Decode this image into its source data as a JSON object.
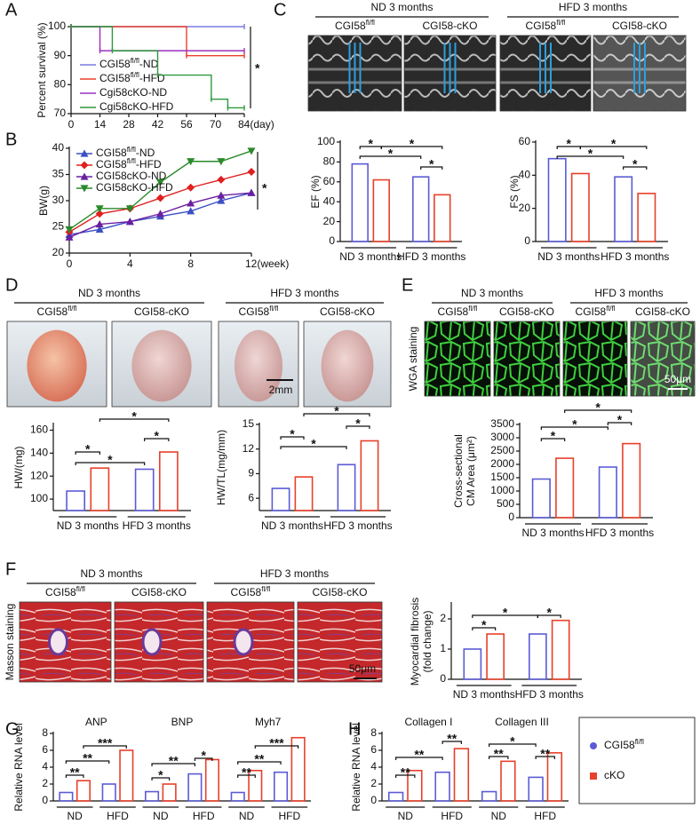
{
  "figure": {
    "panel_labels": [
      "A",
      "B",
      "C",
      "D",
      "E",
      "F",
      "G",
      "H"
    ],
    "echo": {
      "groups": [
        "ND 3 months",
        "HFD 3 months"
      ],
      "columns": [
        "CGI58fl/fl",
        "CGI58-cKO",
        "CGI58fl/fl",
        "CGI58-cKO"
      ]
    },
    "hearts": {
      "groups": [
        "ND 3 months",
        "HFD 3 months"
      ],
      "columns": [
        "CGI58fl/fl",
        "CGI58-cKO",
        "CGI58fl/fl",
        "CGI58-cKO"
      ],
      "scale": "2mm"
    },
    "wga": {
      "groups": [
        "ND 3 months",
        "HFD 3 months"
      ],
      "columns": [
        "CGI58fl/fl",
        "CGI58-cKO",
        "CGI58fl/fl",
        "CGI58-cKO"
      ],
      "stain": "WGA staining",
      "scale": "50μm"
    },
    "masson": {
      "groups": [
        "ND 3 months",
        "HFD 3 months"
      ],
      "columns": [
        "CGI58fl/fl",
        "CGI58-cKO",
        "CGI58fl/fl",
        "CGI58-cKO"
      ],
      "stain": "Masson staining",
      "scale": "50μm"
    },
    "legend": [
      {
        "name": "CGI58fl/fl",
        "color": "#5b5bd6"
      },
      {
        "name": "cKO",
        "color": "#e8402a"
      }
    ]
  },
  "chart_data": [
    {
      "type": "step",
      "ylabel": "Percent survival (%)",
      "xlim": [
        0,
        84
      ],
      "xticks": [
        0,
        14,
        28,
        42,
        56,
        70,
        {
          "value": 84,
          "label": "84(day)"
        }
      ],
      "ylim": [
        70,
        100
      ],
      "yticks": [
        70,
        80,
        90,
        100
      ],
      "annotation": "*",
      "series": [
        {
          "name": "CGI58fl/fl-ND",
          "color": "#7b7be0",
          "x": [
            0,
            84
          ],
          "values": [
            100,
            100
          ]
        },
        {
          "name": "CGI58fl/fl-HFD",
          "color": "#e8402a",
          "x": [
            0,
            56,
            84
          ],
          "values": [
            100,
            90,
            90
          ]
        },
        {
          "name": "Cgi58cKO-ND",
          "color": "#9b30c0",
          "x": [
            0,
            14,
            84
          ],
          "values": [
            100,
            91.7,
            91.7
          ]
        },
        {
          "name": "Cgi58cKO-HFD",
          "color": "#2e9a3e",
          "x": [
            0,
            20,
            42,
            68,
            76,
            84
          ],
          "values": [
            100,
            91.7,
            83.3,
            75,
            72,
            72
          ]
        }
      ]
    },
    {
      "type": "line",
      "ylabel": "BW(g)",
      "xlim": [
        0,
        12
      ],
      "xticks": [
        0,
        4,
        8,
        {
          "value": 12,
          "label": "12(week)"
        }
      ],
      "ylim": [
        20,
        40
      ],
      "yticks": [
        20,
        25,
        30,
        35,
        40
      ],
      "annotation": "*",
      "series": [
        {
          "name": "CGI58fl/fl-ND",
          "color": "#3b4fc4",
          "marker": "triangle",
          "x": [
            0,
            2,
            4,
            6,
            8,
            10,
            12
          ],
          "values": [
            23.5,
            24.5,
            26,
            27,
            28,
            30,
            31.5
          ]
        },
        {
          "name": "CGI58fl/fl-HFD",
          "color": "#e02020",
          "marker": "diamond",
          "x": [
            0,
            2,
            4,
            6,
            8,
            10,
            12
          ],
          "values": [
            24,
            27.5,
            28.5,
            30.5,
            32.5,
            34,
            35.5
          ]
        },
        {
          "name": "CGI58cKO-ND",
          "color": "#6a1fa0",
          "marker": "triangle",
          "x": [
            0,
            2,
            4,
            6,
            8,
            10,
            12
          ],
          "values": [
            23,
            25.5,
            26,
            27.5,
            29.5,
            31,
            31.5
          ]
        },
        {
          "name": "CGI58cKO-HFD",
          "color": "#2a8a2a",
          "marker": "triangle-down",
          "x": [
            0,
            2,
            4,
            6,
            8,
            10,
            12
          ],
          "values": [
            24.5,
            28.5,
            28.5,
            33.5,
            37.5,
            37.5,
            39.5
          ]
        }
      ]
    },
    {
      "type": "bar",
      "ylabel": "EF (%)",
      "ylim": [
        0,
        100
      ],
      "yticks": [
        0,
        20,
        40,
        60,
        80,
        100
      ],
      "categories": [
        "ND 3 months",
        "HFD 3 months"
      ],
      "series": [
        {
          "color": "#5b5bd6",
          "values": [
            78,
            65
          ]
        },
        {
          "color": "#e8402a",
          "values": [
            62,
            47
          ]
        }
      ],
      "brackets": [
        "*",
        "*",
        "*",
        "*"
      ]
    },
    {
      "type": "bar",
      "ylabel": "FS (%)",
      "ylim": [
        0,
        60
      ],
      "yticks": [
        0,
        20,
        40,
        60
      ],
      "categories": [
        "ND 3 months",
        "HFD 3 months"
      ],
      "series": [
        {
          "color": "#5b5bd6",
          "values": [
            50,
            39
          ]
        },
        {
          "color": "#e8402a",
          "values": [
            41,
            29
          ]
        }
      ],
      "brackets": [
        "*",
        "*",
        "*",
        "*"
      ]
    },
    {
      "type": "bar",
      "ylabel": "HW/(mg)",
      "ylim": [
        90,
        165
      ],
      "yticks": [
        100,
        120,
        140,
        160
      ],
      "categories": [
        "ND 3 months",
        "HFD 3 months"
      ],
      "series": [
        {
          "color": "#5b5bd6",
          "values": [
            107,
            126
          ]
        },
        {
          "color": "#e8402a",
          "values": [
            127,
            141
          ]
        }
      ],
      "brackets": [
        "*",
        "*",
        "*",
        "*"
      ]
    },
    {
      "type": "bar",
      "ylabel": "HW/TL(mg/mm)",
      "ylim": [
        4.5,
        15
      ],
      "yticks": [
        6,
        9,
        12,
        15
      ],
      "categories": [
        "ND 3 months",
        "HFD 3 months"
      ],
      "series": [
        {
          "color": "#5b5bd6",
          "values": [
            7.2,
            10.1
          ]
        },
        {
          "color": "#e8402a",
          "values": [
            8.6,
            13
          ]
        }
      ],
      "brackets": [
        "*",
        "*",
        "*",
        "*"
      ]
    },
    {
      "type": "bar",
      "ylabel": [
        "Cross-sectional",
        "CM Area (μm²)"
      ],
      "ylim": [
        0,
        3500
      ],
      "yticks": [
        0,
        500,
        1000,
        1500,
        2000,
        2500,
        3000,
        3500
      ],
      "categories": [
        "ND 3 months",
        "HFD 3 months"
      ],
      "series": [
        {
          "color": "#5b5bd6",
          "values": [
            1450,
            1900
          ]
        },
        {
          "color": "#e8402a",
          "values": [
            2230,
            2780
          ]
        }
      ],
      "brackets": [
        "*",
        "*",
        "*",
        "*"
      ]
    },
    {
      "type": "bar",
      "ylabel": [
        "Myocardial fibrosis",
        "(fold change)"
      ],
      "ylim": [
        0,
        2.5
      ],
      "yticks": [
        0,
        1,
        2
      ],
      "categories": [
        "ND 3 months",
        "HFD 3 months"
      ],
      "series": [
        {
          "color": "#5b5bd6",
          "values": [
            1.0,
            1.5
          ]
        },
        {
          "color": "#e8402a",
          "values": [
            1.5,
            1.95
          ]
        }
      ],
      "brackets": [
        "*",
        "*",
        "*"
      ]
    },
    {
      "type": "bar",
      "ylabel": "Relative RNA level",
      "ylim": [
        0,
        8
      ],
      "yticks": [
        0,
        2,
        4,
        6,
        8
      ],
      "group_titles": [
        "ANP",
        "BNP",
        "Myh7"
      ],
      "categories": [
        "ND",
        "HFD",
        "ND",
        "HFD",
        "ND",
        "HFD"
      ],
      "series": [
        {
          "color": "#5b5bd6",
          "values": [
            1.0,
            2.0,
            1.1,
            3.2,
            1.0,
            3.4
          ]
        },
        {
          "color": "#e8402a",
          "values": [
            2.4,
            6.0,
            2.0,
            4.9,
            3.6,
            7.5
          ]
        }
      ],
      "brackets": [
        "***",
        "**",
        "**",
        "*",
        "**",
        "*",
        "***",
        "**",
        "**"
      ]
    },
    {
      "type": "bar",
      "ylabel": "Relative RNA level",
      "ylim": [
        0,
        8
      ],
      "yticks": [
        0,
        2,
        4,
        6,
        8
      ],
      "group_titles": [
        "Collagen I",
        "Collagen III"
      ],
      "categories": [
        "ND",
        "HFD",
        "ND",
        "HFD"
      ],
      "series": [
        {
          "color": "#5b5bd6",
          "values": [
            1.0,
            3.4,
            1.1,
            2.8
          ]
        },
        {
          "color": "#e8402a",
          "values": [
            3.6,
            6.2,
            4.7,
            5.7
          ]
        }
      ],
      "brackets": [
        "**",
        "**",
        "**",
        "*",
        "**",
        "**"
      ]
    }
  ]
}
